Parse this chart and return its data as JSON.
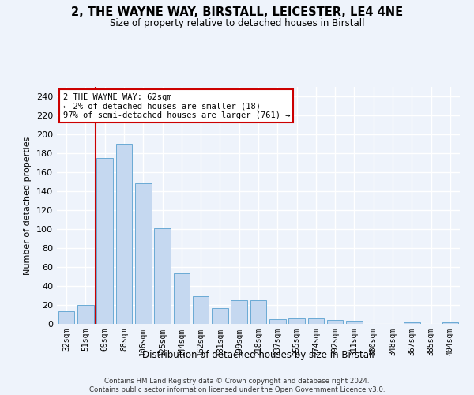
{
  "title": "2, THE WAYNE WAY, BIRSTALL, LEICESTER, LE4 4NE",
  "subtitle": "Size of property relative to detached houses in Birstall",
  "xlabel": "Distribution of detached houses by size in Birstall",
  "ylabel": "Number of detached properties",
  "categories": [
    "32sqm",
    "51sqm",
    "69sqm",
    "88sqm",
    "106sqm",
    "125sqm",
    "144sqm",
    "162sqm",
    "181sqm",
    "199sqm",
    "218sqm",
    "237sqm",
    "255sqm",
    "274sqm",
    "292sqm",
    "311sqm",
    "330sqm",
    "348sqm",
    "367sqm",
    "385sqm",
    "404sqm"
  ],
  "values": [
    13,
    20,
    175,
    190,
    148,
    101,
    53,
    29,
    17,
    25,
    25,
    5,
    6,
    6,
    4,
    3,
    0,
    0,
    2,
    0,
    2
  ],
  "bar_color": "#c5d8f0",
  "bar_edge_color": "#6aaad4",
  "redline_x": 1.5,
  "annotation_line1": "2 THE WAYNE WAY: 62sqm",
  "annotation_line2": "← 2% of detached houses are smaller (18)",
  "annotation_line3": "97% of semi-detached houses are larger (761) →",
  "annotation_box_color": "#ffffff",
  "annotation_box_edge_color": "#cc0000",
  "redline_color": "#cc0000",
  "bg_color": "#eef3fb",
  "grid_color": "#ffffff",
  "yticks": [
    0,
    20,
    40,
    60,
    80,
    100,
    120,
    140,
    160,
    180,
    200,
    220,
    240
  ],
  "ylim": [
    0,
    250
  ],
  "footer": "Contains HM Land Registry data © Crown copyright and database right 2024.\nContains public sector information licensed under the Open Government Licence v3.0."
}
